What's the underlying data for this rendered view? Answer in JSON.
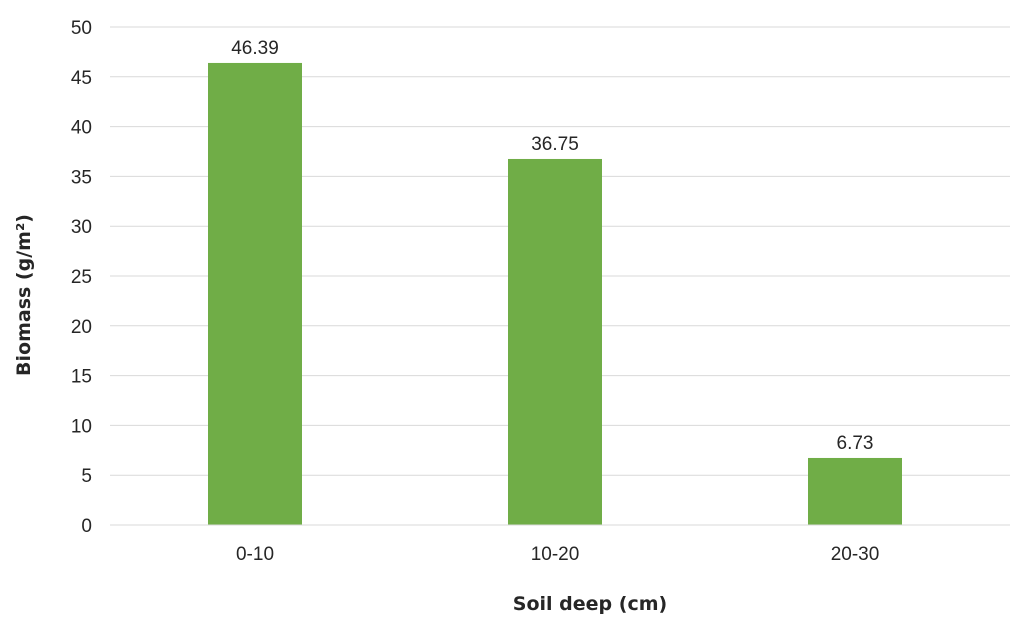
{
  "chart_data": {
    "type": "bar",
    "categories": [
      "0-10",
      "10-20",
      "20-30"
    ],
    "series": [
      {
        "values": [
          46.39,
          36.75,
          6.73
        ],
        "data_labels": [
          "46.39",
          "36.75",
          "6.73"
        ]
      }
    ],
    "title": "",
    "xlabel": "Soil deep (cm)",
    "ylabel": "Biomass (g/m²)",
    "ylim": [
      0,
      50
    ],
    "yticks": [
      "0",
      "5",
      "10",
      "15",
      "20",
      "25",
      "30",
      "35",
      "40",
      "45",
      "50"
    ],
    "grid": true,
    "legend": "none",
    "colors": {
      "bar": "#70ad47",
      "grid": "#d9d9d9",
      "axis": "#d9d9d9",
      "text": "#262626"
    }
  }
}
